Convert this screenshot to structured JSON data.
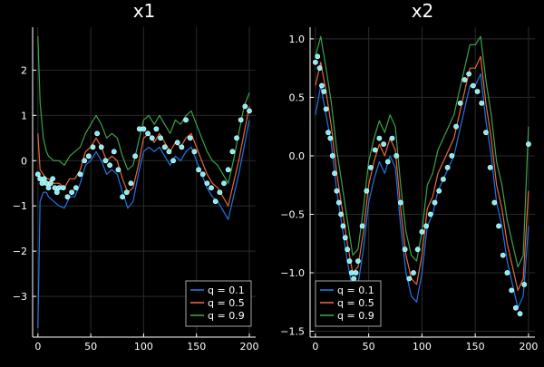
{
  "chart_data": [
    {
      "type": "line",
      "title": "x1",
      "xlabel": "",
      "ylabel": "",
      "xlim": [
        -5,
        206
      ],
      "ylim": [
        -3.9,
        2.95
      ],
      "xticks": [
        0,
        50,
        100,
        150,
        200
      ],
      "yticks": [
        -3,
        -2,
        -1,
        0,
        1,
        2
      ],
      "grid": true,
      "legend": "bottom-right",
      "x": [
        0,
        2,
        5,
        8,
        10,
        15,
        20,
        25,
        30,
        35,
        40,
        45,
        50,
        55,
        60,
        65,
        70,
        75,
        80,
        85,
        90,
        95,
        100,
        105,
        110,
        115,
        120,
        125,
        130,
        135,
        140,
        145,
        150,
        155,
        160,
        165,
        170,
        175,
        180,
        185,
        190,
        195,
        200
      ],
      "series": [
        {
          "name": "q = 0.1",
          "color": "#1f77e4",
          "values": [
            -3.7,
            -0.9,
            -0.7,
            -0.7,
            -0.8,
            -0.9,
            -1.0,
            -1.05,
            -0.8,
            -0.8,
            -0.5,
            -0.1,
            0.0,
            0.2,
            0.0,
            -0.3,
            -0.2,
            -0.3,
            -0.7,
            -1.05,
            -0.9,
            -0.3,
            0.2,
            0.3,
            0.2,
            0.3,
            0.1,
            -0.1,
            0.1,
            0.0,
            0.2,
            0.3,
            0.0,
            -0.3,
            -0.6,
            -0.8,
            -0.9,
            -1.1,
            -1.3,
            -0.8,
            -0.3,
            0.3,
            0.9
          ]
        },
        {
          "name": "q = 0.5",
          "color": "#e8663c",
          "values": [
            0.6,
            -0.2,
            -0.3,
            -0.4,
            -0.4,
            -0.5,
            -0.5,
            -0.6,
            -0.4,
            -0.4,
            -0.2,
            0.2,
            0.3,
            0.5,
            0.3,
            0.0,
            0.1,
            0.0,
            -0.4,
            -0.7,
            -0.6,
            -0.1,
            0.5,
            0.6,
            0.4,
            0.6,
            0.4,
            0.2,
            0.4,
            0.3,
            0.5,
            0.6,
            0.3,
            0.0,
            -0.3,
            -0.5,
            -0.6,
            -0.8,
            -1.0,
            -0.5,
            0.0,
            0.6,
            1.2
          ]
        },
        {
          "name": "q = 0.9",
          "color": "#3ca34a",
          "values": [
            2.75,
            1.3,
            0.5,
            0.2,
            0.1,
            0.0,
            0.0,
            -0.1,
            0.1,
            0.2,
            0.3,
            0.6,
            0.8,
            1.0,
            0.8,
            0.5,
            0.6,
            0.5,
            0.1,
            -0.2,
            -0.1,
            0.4,
            0.9,
            1.0,
            0.8,
            1.0,
            0.8,
            0.6,
            0.9,
            0.8,
            1.0,
            1.1,
            0.8,
            0.5,
            0.2,
            0.0,
            -0.1,
            -0.3,
            -0.5,
            0.0,
            0.6,
            1.2,
            1.5
          ]
        }
      ],
      "observations": {
        "color": "#7af0f5",
        "x": [
          0,
          2,
          4,
          6,
          8,
          10,
          12,
          14,
          16,
          18,
          20,
          24,
          28,
          32,
          36,
          40,
          44,
          48,
          52,
          56,
          60,
          64,
          68,
          72,
          76,
          80,
          84,
          88,
          92,
          96,
          100,
          104,
          108,
          112,
          116,
          120,
          124,
          128,
          132,
          136,
          140,
          144,
          148,
          152,
          156,
          160,
          164,
          168,
          172,
          176,
          180,
          184,
          188,
          192,
          196,
          200
        ],
        "y": [
          -0.3,
          -0.4,
          -0.5,
          -0.4,
          -0.5,
          -0.6,
          -0.5,
          -0.4,
          -0.6,
          -0.7,
          -0.6,
          -0.6,
          -0.8,
          -0.7,
          -0.6,
          -0.3,
          0.0,
          0.1,
          0.3,
          0.6,
          0.3,
          0.0,
          -0.1,
          0.2,
          -0.2,
          -0.8,
          -0.7,
          -0.5,
          0.1,
          0.7,
          0.7,
          0.6,
          0.5,
          0.7,
          0.5,
          0.3,
          0.2,
          0.0,
          0.4,
          0.3,
          0.9,
          0.5,
          0.2,
          -0.2,
          -0.3,
          -0.5,
          -0.6,
          -0.9,
          -0.7,
          -0.5,
          -0.2,
          0.2,
          0.5,
          0.9,
          1.2,
          1.1
        ]
      }
    },
    {
      "type": "line",
      "title": "x2",
      "xlabel": "",
      "ylabel": "",
      "xlim": [
        -5,
        206
      ],
      "ylim": [
        -1.55,
        1.1
      ],
      "xticks": [
        0,
        50,
        100,
        150,
        200
      ],
      "yticks": [
        -1.5,
        -1.0,
        -0.5,
        0.0,
        0.5,
        1.0
      ],
      "yticklabels": [
        "−1.5",
        "−1.0",
        "−0.5",
        "0.0",
        "0.5",
        "1.0"
      ],
      "grid": true,
      "legend": "bottom-left",
      "x": [
        0,
        5,
        10,
        15,
        20,
        25,
        30,
        35,
        40,
        45,
        50,
        55,
        60,
        65,
        70,
        75,
        80,
        85,
        90,
        95,
        100,
        105,
        110,
        115,
        120,
        125,
        130,
        135,
        140,
        145,
        150,
        155,
        160,
        165,
        170,
        175,
        180,
        185,
        190,
        195,
        200
      ],
      "series": [
        {
          "name": "q = 0.1",
          "color": "#1f77e4",
          "values": [
            0.35,
            0.6,
            0.35,
            0.1,
            -0.3,
            -0.6,
            -0.9,
            -1.15,
            -1.1,
            -0.8,
            -0.4,
            -0.2,
            -0.05,
            -0.15,
            0.0,
            -0.1,
            -0.6,
            -1.0,
            -1.2,
            -1.25,
            -1.0,
            -0.6,
            -0.5,
            -0.3,
            -0.2,
            -0.1,
            0.0,
            0.2,
            0.4,
            0.6,
            0.6,
            0.7,
            0.3,
            0.0,
            -0.4,
            -0.6,
            -0.9,
            -1.1,
            -1.3,
            -1.2,
            -0.6
          ]
        },
        {
          "name": "q = 0.5",
          "color": "#e8663c",
          "values": [
            0.6,
            0.8,
            0.55,
            0.25,
            -0.15,
            -0.45,
            -0.75,
            -1.0,
            -0.95,
            -0.65,
            -0.25,
            -0.05,
            0.1,
            0.0,
            0.15,
            0.05,
            -0.45,
            -0.85,
            -1.05,
            -1.1,
            -0.85,
            -0.45,
            -0.35,
            -0.15,
            -0.05,
            0.05,
            0.15,
            0.35,
            0.55,
            0.75,
            0.75,
            0.85,
            0.45,
            0.15,
            -0.25,
            -0.45,
            -0.75,
            -0.95,
            -1.15,
            -1.05,
            -0.3
          ]
        },
        {
          "name": "q = 0.9",
          "color": "#3ca34a",
          "values": [
            0.85,
            1.02,
            0.75,
            0.45,
            0.05,
            -0.25,
            -0.55,
            -0.85,
            -0.8,
            -0.45,
            -0.05,
            0.15,
            0.3,
            0.2,
            0.35,
            0.25,
            -0.25,
            -0.65,
            -0.85,
            -0.9,
            -0.65,
            -0.25,
            -0.15,
            0.05,
            0.15,
            0.25,
            0.35,
            0.55,
            0.75,
            0.95,
            0.95,
            1.02,
            0.65,
            0.35,
            -0.05,
            -0.25,
            -0.55,
            -0.75,
            -0.95,
            -0.85,
            0.25
          ]
        }
      ],
      "observations": {
        "color": "#7af0f5",
        "x": [
          0,
          2,
          4,
          6,
          8,
          10,
          12,
          14,
          16,
          18,
          20,
          22,
          24,
          26,
          28,
          30,
          32,
          34,
          36,
          38,
          40,
          44,
          48,
          52,
          56,
          60,
          64,
          68,
          72,
          76,
          80,
          84,
          88,
          92,
          96,
          100,
          104,
          108,
          112,
          116,
          120,
          124,
          128,
          132,
          136,
          140,
          144,
          148,
          152,
          156,
          160,
          164,
          168,
          172,
          176,
          180,
          184,
          188,
          192,
          196,
          200
        ],
        "y": [
          0.8,
          0.85,
          0.75,
          0.6,
          0.55,
          0.4,
          0.2,
          0.15,
          0.0,
          -0.15,
          -0.3,
          -0.4,
          -0.5,
          -0.6,
          -0.7,
          -0.8,
          -0.9,
          -1.0,
          -1.05,
          -1.0,
          -0.9,
          -0.6,
          -0.3,
          -0.1,
          0.05,
          0.15,
          0.1,
          -0.05,
          0.15,
          0.0,
          -0.4,
          -0.8,
          -1.05,
          -1.0,
          -0.8,
          -0.65,
          -0.6,
          -0.5,
          -0.4,
          -0.3,
          -0.2,
          -0.1,
          0.0,
          0.25,
          0.45,
          0.65,
          0.7,
          0.6,
          0.55,
          0.45,
          0.2,
          -0.1,
          -0.4,
          -0.6,
          -0.85,
          -1.0,
          -1.15,
          -1.3,
          -1.35,
          -1.1,
          0.1
        ]
      }
    }
  ]
}
